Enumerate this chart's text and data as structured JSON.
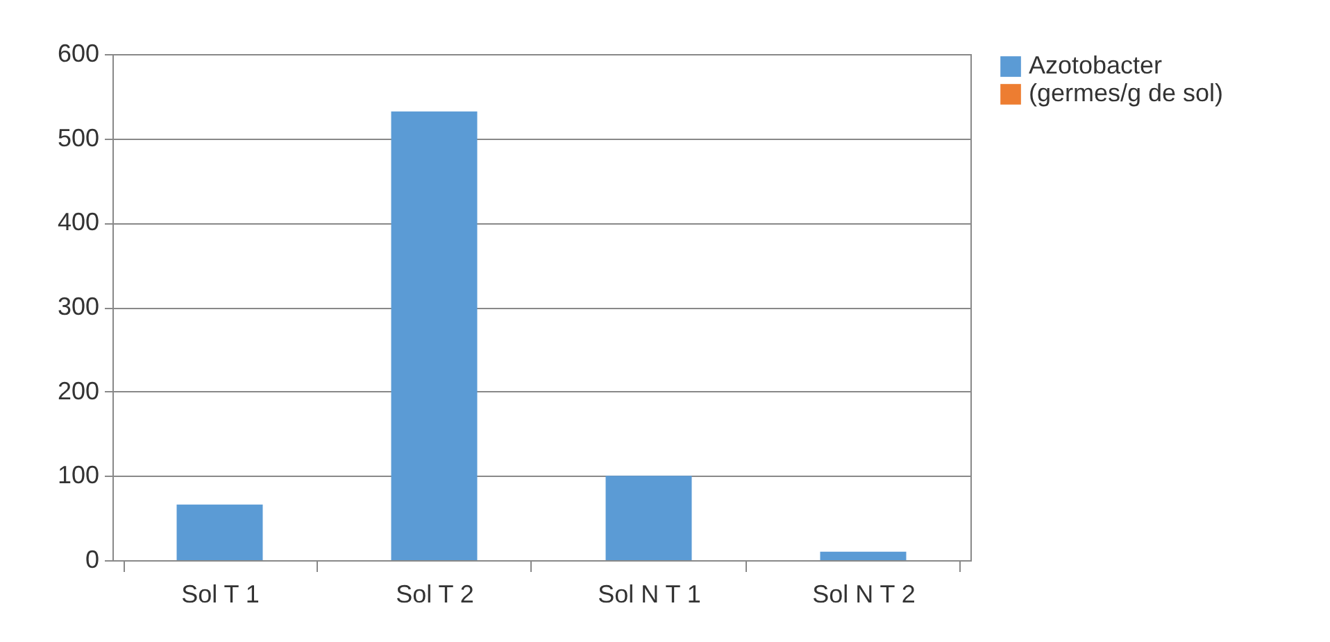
{
  "chart_data": {
    "type": "bar",
    "categories": [
      "Sol T 1",
      "Sol T 2",
      "Sol N T 1",
      "Sol N T 2"
    ],
    "series": [
      {
        "name": "Azotobacter",
        "color": "#5b9bd5",
        "values": [
          66,
          532,
          100,
          10
        ]
      },
      {
        "name": "(germes/g de sol)",
        "color": "#ed7d31",
        "values": [
          null,
          null,
          null,
          null
        ]
      }
    ],
    "ylim": [
      0,
      600
    ],
    "yticks": [
      0,
      100,
      200,
      300,
      400,
      500,
      600
    ],
    "grid": "y",
    "legend": "right"
  }
}
